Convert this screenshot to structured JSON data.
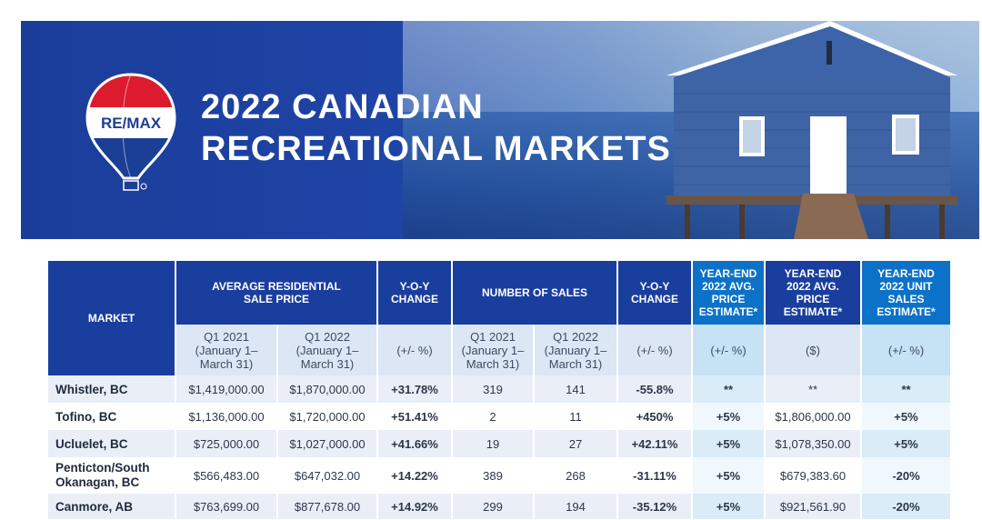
{
  "banner": {
    "logo_text": "RE/MAX",
    "title_line1": "2022 CANADIAN",
    "title_line2": "RECREATIONAL MARKETS"
  },
  "table": {
    "headers": {
      "market": "MARKET",
      "avg_price": "AVERAGE RESIDENTIAL SALE PRICE",
      "yoy1": "Y-O-Y CHANGE",
      "num_sales": "NUMBER OF SALES",
      "yoy2": "Y-O-Y CHANGE",
      "ye_avg_pct": "YEAR-END 2022 AVG. PRICE ESTIMATE*",
      "ye_avg_dollar": "YEAR-END 2022 AVG. PRICE ESTIMATE*",
      "ye_units": "YEAR-END 2022 UNIT SALES ESTIMATE*"
    },
    "subheaders": {
      "q1_2021_a": "Q1 2021 (January 1– March 31)",
      "q1_2022_a": "Q1 2022 (January 1– March 31)",
      "pct1": "(+/- %)",
      "q1_2021_b": "Q1 2021 (January 1– March 31)",
      "q1_2022_b": "Q1 2022 (January 1– March 31)",
      "pct2": "(+/- %)",
      "pct3": "(+/- %)",
      "dollar": "($)",
      "pct4": "(+/- %)"
    },
    "rows": [
      {
        "market": "Whistler, BC",
        "p2021": "$1,419,000.00",
        "p2022": "$1,870,000.00",
        "yoy_price": "+31.78%",
        "s2021": "319",
        "s2022": "141",
        "yoy_sales": "-55.8%",
        "ye_pct": "**",
        "ye_price": "**",
        "ye_units": "**"
      },
      {
        "market": "Tofino, BC",
        "p2021": "$1,136,000.00",
        "p2022": "$1,720,000.00",
        "yoy_price": "+51.41%",
        "s2021": "2",
        "s2022": "11",
        "yoy_sales": "+450%",
        "ye_pct": "+5%",
        "ye_price": "$1,806,000.00",
        "ye_units": "+5%"
      },
      {
        "market": "Ucluelet, BC",
        "p2021": "$725,000.00",
        "p2022": "$1,027,000.00",
        "yoy_price": "+41.66%",
        "s2021": "19",
        "s2022": "27",
        "yoy_sales": "+42.11%",
        "ye_pct": "+5%",
        "ye_price": "$1,078,350.00",
        "ye_units": "+5%"
      },
      {
        "market": "Penticton/South Okanagan, BC",
        "p2021": "$566,483.00",
        "p2022": "$647,032.00",
        "yoy_price": "+14.22%",
        "s2021": "389",
        "s2022": "268",
        "yoy_sales": "-31.11%",
        "ye_pct": "+5%",
        "ye_price": "$679,383.60",
        "ye_units": "-20%"
      },
      {
        "market": "Canmore, AB",
        "p2021": "$763,699.00",
        "p2022": "$877,678.00",
        "yoy_price": "+14.92%",
        "s2021": "299",
        "s2022": "194",
        "yoy_sales": "-35.12%",
        "ye_pct": "+5%",
        "ye_price": "$921,561.90",
        "ye_units": "-20%"
      }
    ]
  }
}
